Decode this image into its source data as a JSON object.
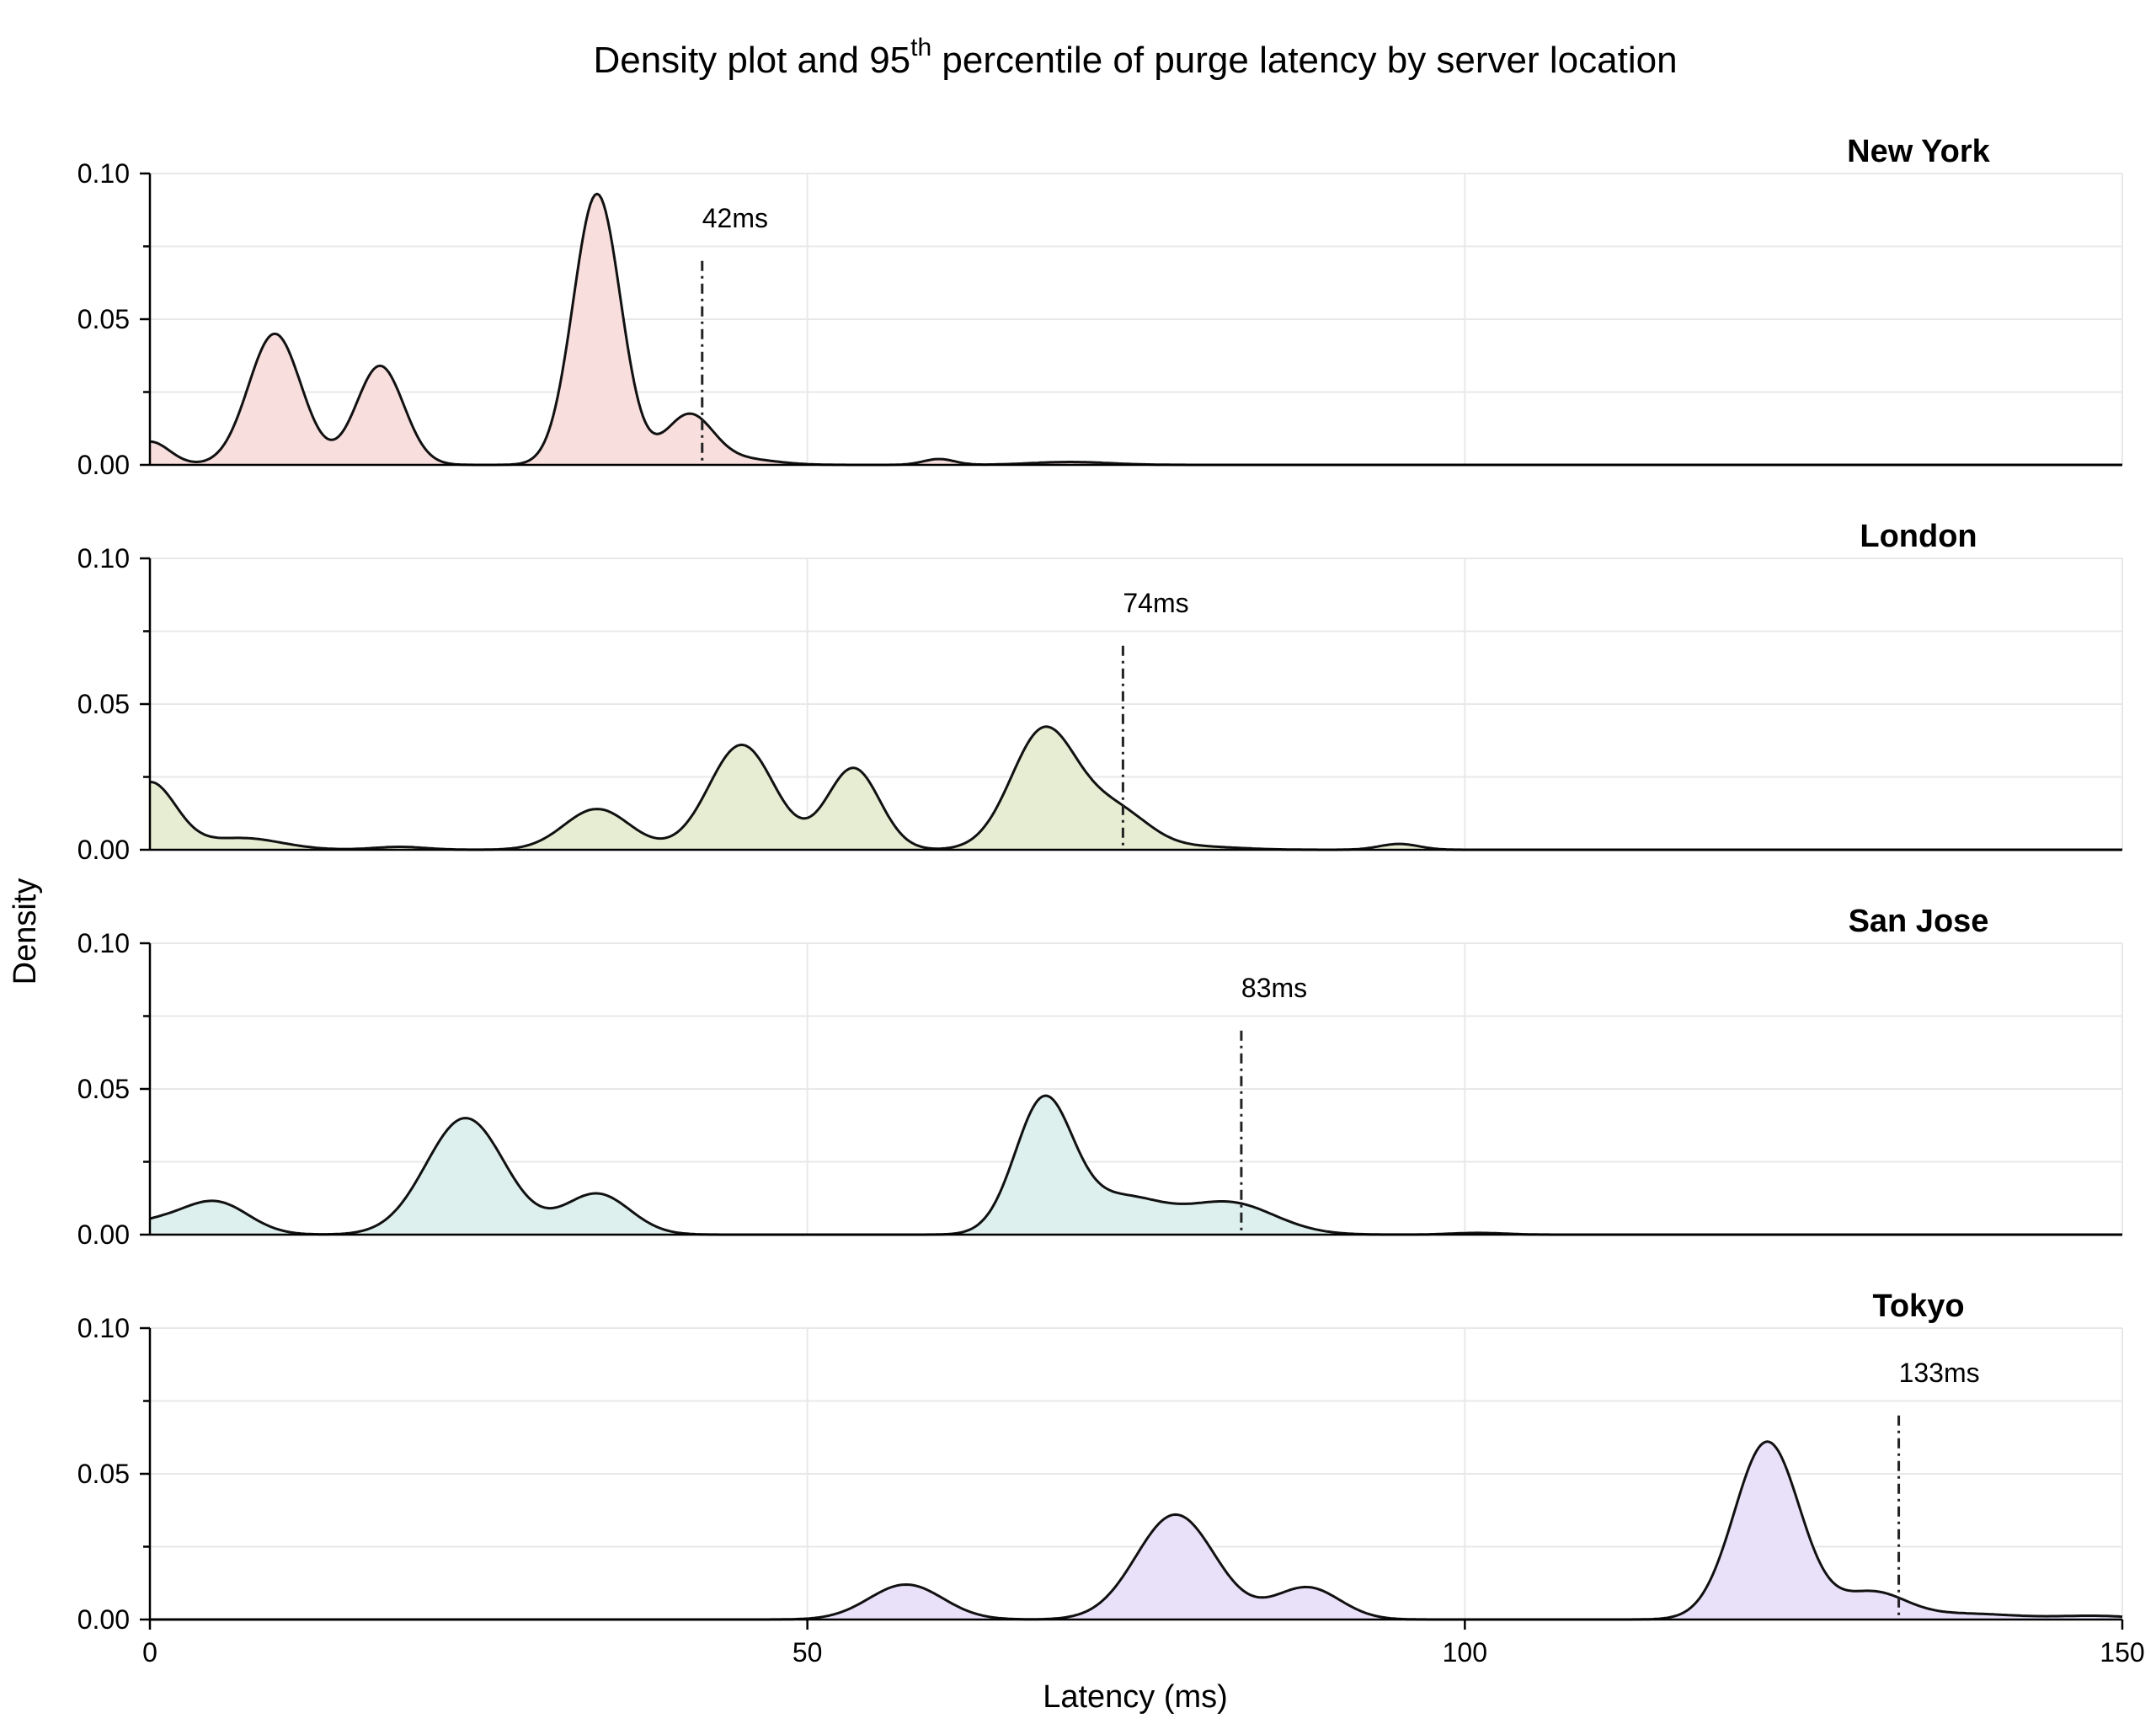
{
  "chart_data": {
    "type": "area",
    "title_main": "Density plot and 95",
    "title_sup": "th",
    "title_rest": " percentile of purge latency by server location",
    "xlabel": "Latency (ms)",
    "ylabel": "Density",
    "xlim": [
      0,
      150
    ],
    "ylim": [
      0,
      0.1
    ],
    "x_ticks": [
      0,
      50,
      100,
      150
    ],
    "y_ticks": [
      0.0,
      0.05,
      0.1
    ],
    "y_tick_labels": [
      "0.00",
      "0.05",
      "0.10"
    ],
    "grid": true,
    "panels": [
      {
        "name": "New York",
        "p95": 42,
        "p95_label": "42ms",
        "fill": "#f8dedd",
        "peaks": [
          {
            "mu": 0,
            "sigma": 1.5,
            "h": 0.008
          },
          {
            "mu": 9.5,
            "sigma": 2.0,
            "h": 0.045
          },
          {
            "mu": 17.5,
            "sigma": 1.8,
            "h": 0.034
          },
          {
            "mu": 34,
            "sigma": 1.8,
            "h": 0.093
          },
          {
            "mu": 41,
            "sigma": 1.8,
            "h": 0.017
          },
          {
            "mu": 45,
            "sigma": 2.5,
            "h": 0.002
          },
          {
            "mu": 60,
            "sigma": 1.2,
            "h": 0.002
          },
          {
            "mu": 70,
            "sigma": 3.0,
            "h": 0.001
          }
        ]
      },
      {
        "name": "London",
        "p95": 74,
        "p95_label": "74ms",
        "fill": "#e7edd3",
        "peaks": [
          {
            "mu": 0,
            "sigma": 2.0,
            "h": 0.023
          },
          {
            "mu": 7,
            "sigma": 3.0,
            "h": 0.004
          },
          {
            "mu": 19,
            "sigma": 2.0,
            "h": 0.001
          },
          {
            "mu": 34,
            "sigma": 2.5,
            "h": 0.014
          },
          {
            "mu": 45,
            "sigma": 2.5,
            "h": 0.036
          },
          {
            "mu": 53.5,
            "sigma": 2.0,
            "h": 0.028
          },
          {
            "mu": 68,
            "sigma": 2.5,
            "h": 0.041
          },
          {
            "mu": 73.5,
            "sigma": 2.5,
            "h": 0.013
          },
          {
            "mu": 80,
            "sigma": 3.0,
            "h": 0.001
          },
          {
            "mu": 95,
            "sigma": 1.5,
            "h": 0.002
          }
        ]
      },
      {
        "name": "San Jose",
        "p95": 83,
        "p95_label": "83ms",
        "fill": "#ddf0ee",
        "peaks": [
          {
            "mu": 0,
            "sigma": 2.5,
            "h": 0.004
          },
          {
            "mu": 5,
            "sigma": 2.5,
            "h": 0.011
          },
          {
            "mu": 24,
            "sigma": 3.0,
            "h": 0.04
          },
          {
            "mu": 34,
            "sigma": 2.5,
            "h": 0.014
          },
          {
            "mu": 68,
            "sigma": 2.2,
            "h": 0.046
          },
          {
            "mu": 74,
            "sigma": 3.0,
            "h": 0.012
          },
          {
            "mu": 82,
            "sigma": 3.5,
            "h": 0.011
          },
          {
            "mu": 101,
            "sigma": 2.0,
            "h": 0.0006
          }
        ]
      },
      {
        "name": "Tokyo",
        "p95": 133,
        "p95_label": "133ms",
        "fill": "#e9e0fa",
        "peaks": [
          {
            "mu": 57.5,
            "sigma": 2.8,
            "h": 0.012
          },
          {
            "mu": 78,
            "sigma": 3.0,
            "h": 0.036
          },
          {
            "mu": 88,
            "sigma": 2.5,
            "h": 0.011
          },
          {
            "mu": 123,
            "sigma": 2.5,
            "h": 0.061
          },
          {
            "mu": 131,
            "sigma": 2.5,
            "h": 0.009
          },
          {
            "mu": 138,
            "sigma": 4.0,
            "h": 0.002
          },
          {
            "mu": 148,
            "sigma": 3.0,
            "h": 0.0012
          }
        ]
      }
    ]
  }
}
